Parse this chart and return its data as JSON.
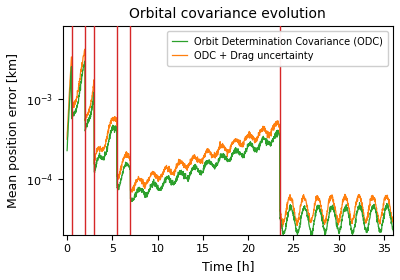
{
  "title": "Orbital covariance evolution",
  "xlabel": "Time [h]",
  "ylabel": "Mean position error [km]",
  "xlim": [
    -0.5,
    36
  ],
  "ylim": [
    2e-05,
    0.008
  ],
  "xticks": [
    0,
    5,
    10,
    15,
    20,
    25,
    30,
    35
  ],
  "red_vlines": [
    0.5,
    2.0,
    3.0,
    5.5,
    7.0,
    23.5
  ],
  "green_color": "#2ca02c",
  "orange_color": "#ff7f0e",
  "red_color": "#d62728",
  "legend_labels": [
    "Orbit Determination Covariance (ODC)",
    "ODC + Drag uncertainty"
  ],
  "linewidth": 0.9,
  "seed": 42,
  "osc_period": 1.52,
  "dt": 0.02
}
